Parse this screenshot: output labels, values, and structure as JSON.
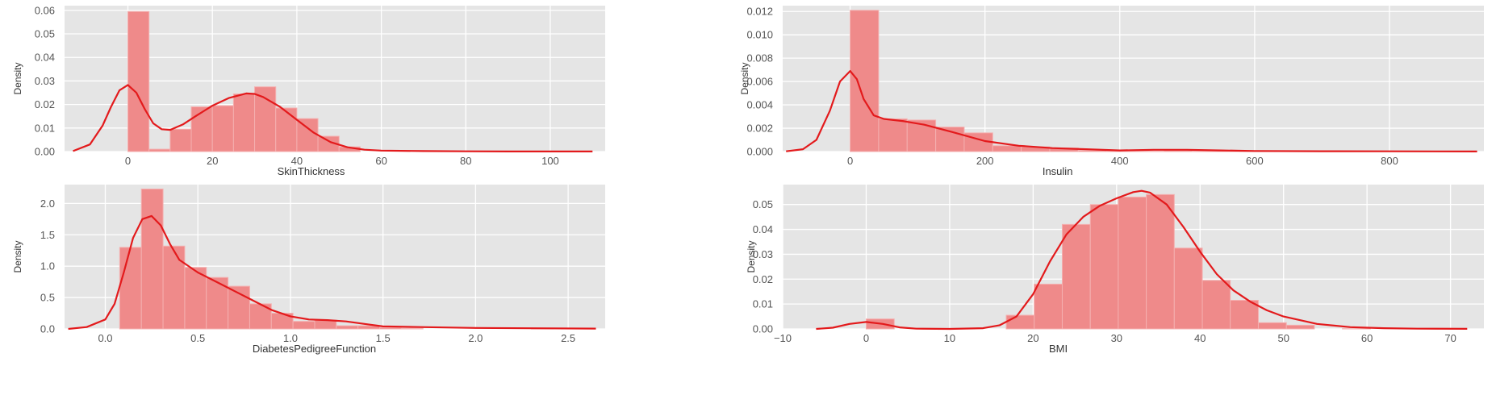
{
  "chart_data": [
    {
      "type": "histogram+kde",
      "title": "",
      "xlabel": "SkinThickness",
      "ylabel": "Density",
      "xlim": [
        -15,
        113
      ],
      "ylim": [
        0,
        0.062
      ],
      "xticks": [
        0,
        20,
        40,
        60,
        80,
        100
      ],
      "yticks": [
        0.0,
        0.01,
        0.02,
        0.03,
        0.04,
        0.05,
        0.06
      ],
      "ytick_labels": [
        "0.00",
        "0.01",
        "0.02",
        "0.03",
        "0.04",
        "0.05",
        "0.06"
      ],
      "xtick_labels": [
        "0",
        "20",
        "40",
        "60",
        "80",
        "100"
      ],
      "bin_edges": [
        0,
        5,
        10,
        15,
        20,
        25,
        30,
        35,
        40,
        45,
        50,
        55,
        60,
        65,
        70,
        75,
        80,
        85,
        90,
        95,
        100
      ],
      "bin_values": [
        0.0595,
        0.001,
        0.0095,
        0.019,
        0.0195,
        0.0245,
        0.0275,
        0.0185,
        0.014,
        0.0065,
        0.002,
        0,
        0,
        0,
        0,
        0,
        0,
        0,
        0,
        0
      ],
      "kde": {
        "x": [
          -13,
          -9,
          -6,
          -4,
          -2,
          0,
          2,
          4,
          6,
          8,
          10,
          13,
          16,
          20,
          24,
          28,
          30,
          32,
          36,
          40,
          44,
          48,
          52,
          56,
          60,
          70,
          80,
          90,
          100,
          110
        ],
        "y": [
          0.0002,
          0.003,
          0.011,
          0.019,
          0.026,
          0.0283,
          0.025,
          0.018,
          0.012,
          0.0095,
          0.0092,
          0.0115,
          0.015,
          0.0195,
          0.0228,
          0.0247,
          0.0245,
          0.0232,
          0.019,
          0.0135,
          0.008,
          0.004,
          0.0018,
          0.0008,
          0.0004,
          0.0002,
          0.0001,
          5e-05,
          3e-05,
          2e-05
        ]
      }
    },
    {
      "type": "histogram+kde",
      "title": "",
      "xlabel": "Insulin",
      "ylabel": "Density",
      "xlim": [
        -100,
        940
      ],
      "ylim": [
        0,
        0.0125
      ],
      "xticks": [
        0,
        200,
        400,
        600,
        800
      ],
      "yticks": [
        0.0,
        0.002,
        0.004,
        0.006,
        0.008,
        0.01,
        0.012
      ],
      "ytick_labels": [
        "0.000",
        "0.002",
        "0.004",
        "0.006",
        "0.008",
        "0.010",
        "0.012"
      ],
      "xtick_labels": [
        "0",
        "200",
        "400",
        "600",
        "800"
      ],
      "bin_edges": [
        0,
        42.3,
        84.6,
        126.9,
        169.2,
        211.5,
        253.8,
        296.1,
        338.4,
        380.7,
        423,
        465.3,
        507.6,
        549.9,
        592.2,
        634.5,
        676.8,
        719.1,
        761.4,
        803.7,
        846
      ],
      "bin_values": [
        0.0121,
        0.0028,
        0.0027,
        0.0021,
        0.0016,
        0.0005,
        0.0004,
        0.0003,
        0.0001,
        5e-05,
        3e-05,
        0.0001,
        3e-05,
        2e-05,
        2e-05,
        2e-05,
        1e-05,
        1e-05,
        0,
        2e-05
      ],
      "kde": {
        "x": [
          -95,
          -70,
          -50,
          -30,
          -15,
          0,
          10,
          20,
          35,
          50,
          80,
          110,
          150,
          200,
          250,
          300,
          350,
          400,
          450,
          500,
          550,
          600,
          700,
          800,
          930
        ],
        "y": [
          2e-05,
          0.0002,
          0.001,
          0.0035,
          0.006,
          0.0069,
          0.0062,
          0.0045,
          0.0031,
          0.0028,
          0.0026,
          0.0023,
          0.0017,
          0.0009,
          0.0005,
          0.0003,
          0.0002,
          0.0001,
          0.00015,
          0.00015,
          0.0001,
          5e-05,
          3e-05,
          2e-05,
          1e-05
        ]
      }
    },
    {
      "type": "histogram+kde",
      "title": "",
      "xlabel": "DiabetesPedigreeFunction",
      "ylabel": "Density",
      "xlim": [
        -0.22,
        2.7
      ],
      "ylim": [
        0,
        2.3
      ],
      "xticks": [
        0.0,
        0.5,
        1.0,
        1.5,
        2.0,
        2.5
      ],
      "yticks": [
        0.0,
        0.5,
        1.0,
        1.5,
        2.0
      ],
      "ytick_labels": [
        "0.0",
        "0.5",
        "1.0",
        "1.5",
        "2.0"
      ],
      "xtick_labels": [
        "0.0",
        "0.5",
        "1.0",
        "1.5",
        "2.0",
        "2.5"
      ],
      "bin_edges": [
        0.078,
        0.195,
        0.312,
        0.429,
        0.546,
        0.663,
        0.78,
        0.897,
        1.014,
        1.131,
        1.248,
        1.365,
        1.482,
        1.599,
        1.716,
        1.833,
        1.95,
        2.067,
        2.184,
        2.301,
        2.42
      ],
      "bin_values": [
        1.3,
        2.23,
        1.32,
        0.98,
        0.82,
        0.68,
        0.4,
        0.25,
        0.12,
        0.14,
        0.05,
        0.05,
        0.02,
        0.01,
        0.0,
        0.0,
        0.0,
        0.0,
        0.0,
        0.01
      ],
      "kde": {
        "x": [
          -0.2,
          -0.1,
          0.0,
          0.05,
          0.1,
          0.15,
          0.2,
          0.25,
          0.3,
          0.35,
          0.4,
          0.5,
          0.6,
          0.7,
          0.8,
          0.9,
          1.0,
          1.1,
          1.2,
          1.3,
          1.4,
          1.5,
          1.7,
          2.0,
          2.3,
          2.65
        ],
        "y": [
          0.0,
          0.03,
          0.15,
          0.4,
          0.9,
          1.45,
          1.75,
          1.8,
          1.65,
          1.35,
          1.1,
          0.9,
          0.75,
          0.6,
          0.45,
          0.3,
          0.2,
          0.15,
          0.14,
          0.12,
          0.08,
          0.04,
          0.03,
          0.015,
          0.01,
          0.005
        ]
      }
    },
    {
      "type": "histogram+kde",
      "title": "",
      "xlabel": "BMI",
      "ylabel": "Density",
      "xlim": [
        -10,
        74
      ],
      "ylim": [
        0,
        0.058
      ],
      "xticks": [
        -10,
        0,
        10,
        20,
        30,
        40,
        50,
        60,
        70
      ],
      "yticks": [
        0.0,
        0.01,
        0.02,
        0.03,
        0.04,
        0.05
      ],
      "ytick_labels": [
        "0.00",
        "0.01",
        "0.02",
        "0.03",
        "0.04",
        "0.05"
      ],
      "xtick_labels": [
        "−10",
        "0",
        "10",
        "20",
        "30",
        "40",
        "50",
        "60",
        "70"
      ],
      "bin_edges": [
        0,
        3.36,
        6.71,
        10.07,
        13.42,
        16.78,
        20.13,
        23.49,
        26.85,
        30.2,
        33.56,
        36.91,
        40.27,
        43.62,
        46.98,
        50.34,
        53.69,
        57.05,
        60.4,
        63.76,
        67.1
      ],
      "bin_values": [
        0.004,
        0.0,
        0.0,
        0.0,
        0.0,
        0.0055,
        0.018,
        0.042,
        0.05,
        0.053,
        0.054,
        0.0325,
        0.0195,
        0.0115,
        0.0025,
        0.0015,
        0.0,
        0.0001,
        0.0,
        5e-05
      ],
      "kde": {
        "x": [
          -6,
          -4,
          -2,
          0,
          2,
          4,
          6,
          10,
          14,
          16,
          18,
          20,
          22,
          24,
          26,
          28,
          30,
          32,
          33,
          34,
          36,
          38,
          40,
          42,
          44,
          46,
          48,
          50,
          54,
          58,
          62,
          66,
          72
        ],
        "y": [
          0.0,
          0.0005,
          0.002,
          0.0028,
          0.002,
          0.0006,
          0.0001,
          0.0,
          0.0003,
          0.0015,
          0.005,
          0.014,
          0.027,
          0.038,
          0.045,
          0.0495,
          0.0525,
          0.055,
          0.0555,
          0.0548,
          0.05,
          0.041,
          0.031,
          0.022,
          0.0155,
          0.011,
          0.0075,
          0.005,
          0.002,
          0.0007,
          0.0003,
          0.0001,
          3e-05
        ]
      }
    }
  ],
  "style": {
    "plot_bg": "#e5e5e5",
    "grid": "#ffffff",
    "bar_fill": "#ef8a8a",
    "bar_stroke": "#f4b0b0",
    "kde_line": "#e31a1c",
    "tick_text": "#555555",
    "label_text": "#333333"
  }
}
